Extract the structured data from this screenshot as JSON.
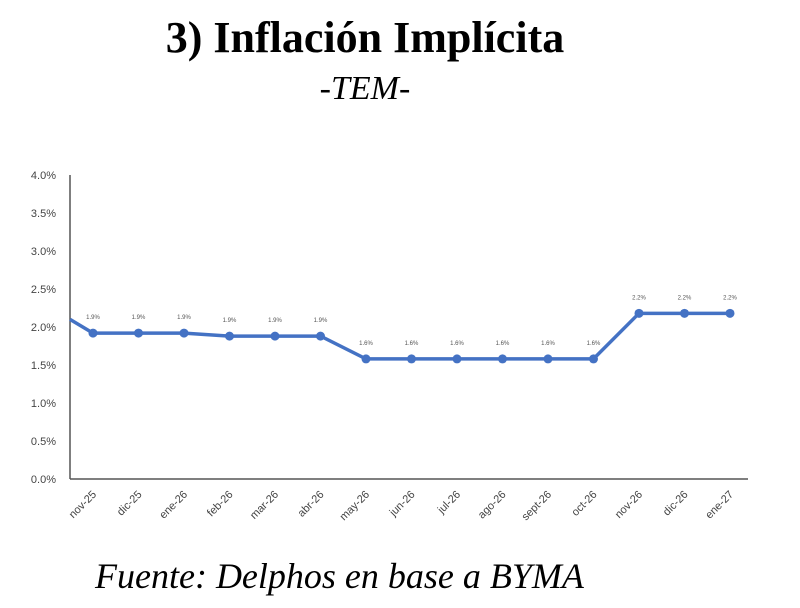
{
  "title": "3) Inflación Implícita",
  "subtitle": "-TEM-",
  "source": "Fuente: Delphos en base a BYMA",
  "chart_data": {
    "type": "line",
    "title": "3) Inflación Implícita",
    "subtitle": "-TEM-",
    "xlabel": "",
    "ylabel": "",
    "ylim": [
      0,
      4.0
    ],
    "yticks": [
      "0.0%",
      "0.5%",
      "1.0%",
      "1.5%",
      "2.0%",
      "2.5%",
      "3.0%",
      "3.5%",
      "4.0%"
    ],
    "categories": [
      "nov-25",
      "dic-25",
      "ene-26",
      "feb-26",
      "mar-26",
      "abr-26",
      "may-26",
      "jun-26",
      "jul-26",
      "ago-26",
      "sept-26",
      "oct-26",
      "nov-26",
      "dic-26",
      "ene-27"
    ],
    "leading_value": 2.1,
    "series": [
      {
        "name": "TEM",
        "color": "#4472C4",
        "values": [
          1.92,
          1.92,
          1.92,
          1.88,
          1.88,
          1.88,
          1.58,
          1.58,
          1.58,
          1.58,
          1.58,
          1.58,
          2.18,
          2.18,
          2.18
        ]
      }
    ],
    "data_labels": [
      "1.9%",
      "1.9%",
      "1.9%",
      "1.9%",
      "1.9%",
      "1.9%",
      "1.6%",
      "1.6%",
      "1.6%",
      "1.6%",
      "1.6%",
      "1.6%",
      "2.2%",
      "2.2%",
      "2.2%"
    ],
    "grid": false,
    "legend": "none"
  }
}
